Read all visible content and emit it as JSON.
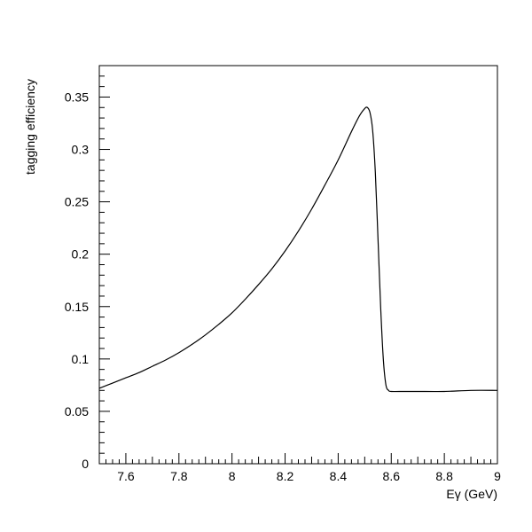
{
  "chart_data": {
    "type": "line",
    "title": "",
    "xlabel": "Eγ (GeV)",
    "ylabel": "tagging efficiency",
    "xlim": [
      7.5,
      9.0
    ],
    "ylim": [
      0,
      0.38
    ],
    "grid": false,
    "x_ticks": [
      7.6,
      7.8,
      8.0,
      8.2,
      8.4,
      8.6,
      8.8,
      9.0
    ],
    "x_tick_labels": [
      "7.6",
      "7.8",
      "8",
      "8.2",
      "8.4",
      "8.6",
      "8.8",
      "9"
    ],
    "y_ticks": [
      0,
      0.05,
      0.1,
      0.15,
      0.2,
      0.25,
      0.3,
      0.35
    ],
    "y_tick_labels": [
      "0",
      "0.05",
      "0.1",
      "0.15",
      "0.2",
      "0.25",
      "0.3",
      "0.35"
    ],
    "series": [
      {
        "x": [
          7.5,
          7.55,
          7.6,
          7.65,
          7.7,
          7.75,
          7.8,
          7.85,
          7.9,
          7.95,
          8.0,
          8.05,
          8.1,
          8.15,
          8.2,
          8.25,
          8.3,
          8.35,
          8.4,
          8.45,
          8.48,
          8.5,
          8.51,
          8.52,
          8.53,
          8.54,
          8.55,
          8.56,
          8.57,
          8.58,
          8.59,
          8.6,
          8.65,
          8.7,
          8.8,
          8.9,
          9.0
        ],
        "y": [
          0.072,
          0.077,
          0.082,
          0.087,
          0.093,
          0.099,
          0.106,
          0.114,
          0.123,
          0.133,
          0.144,
          0.157,
          0.171,
          0.186,
          0.203,
          0.222,
          0.243,
          0.266,
          0.29,
          0.317,
          0.332,
          0.339,
          0.34,
          0.335,
          0.318,
          0.278,
          0.215,
          0.15,
          0.1,
          0.075,
          0.07,
          0.069,
          0.069,
          0.069,
          0.069,
          0.07,
          0.07
        ]
      }
    ]
  }
}
